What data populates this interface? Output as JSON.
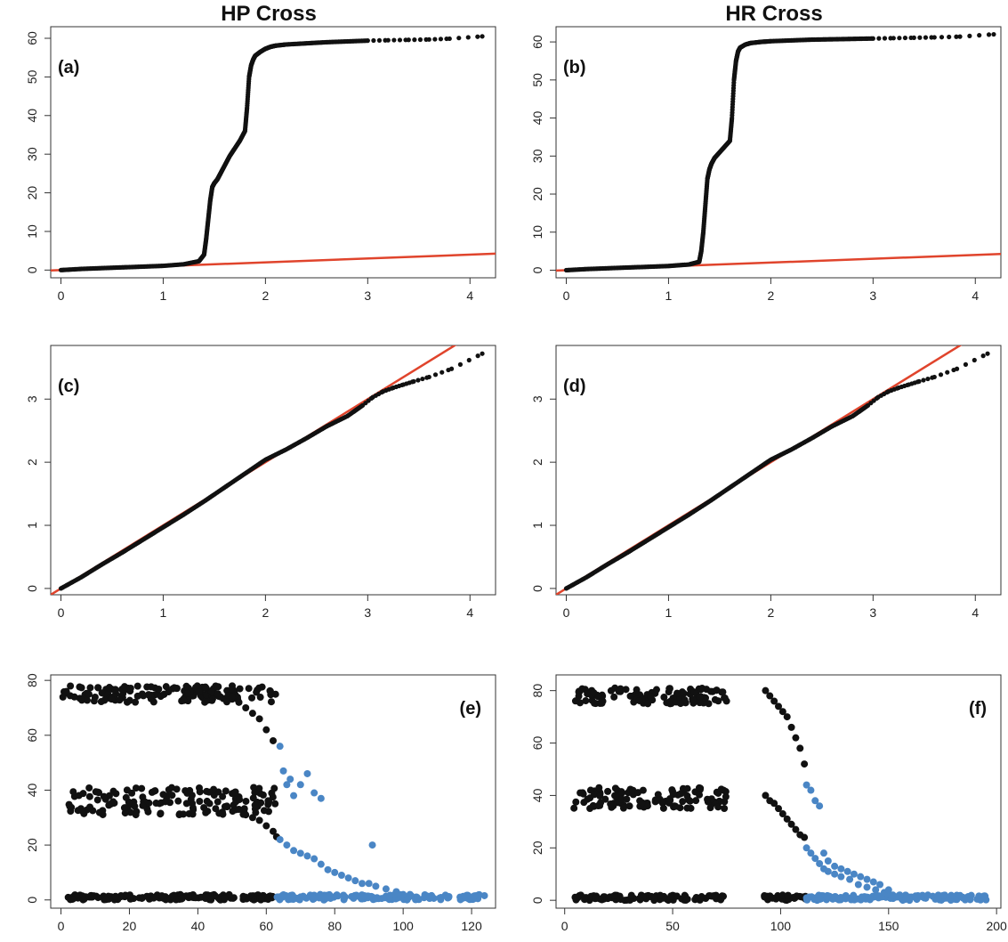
{
  "titles": {
    "left": "HP Cross",
    "right": "HR Cross"
  },
  "colors": {
    "points": "#111111",
    "highlight": "#4a86c5",
    "reference_line": "#e0442c"
  },
  "chart_data": [
    {
      "id": "a",
      "type": "scatter",
      "panel_label": "(a)",
      "title": "HP Cross",
      "xlim": [
        -0.1,
        4.25
      ],
      "ylim": [
        -2,
        63
      ],
      "xticks": [
        0,
        1,
        2,
        3,
        4
      ],
      "yticks": [
        0,
        10,
        20,
        30,
        40,
        50,
        60
      ],
      "reference_line": {
        "slope": 1,
        "intercept": 0
      },
      "series": [
        {
          "x": [
            0,
            0.2,
            0.4,
            0.6,
            0.8,
            1.0,
            1.2,
            1.35,
            1.4,
            1.42,
            1.44,
            1.46,
            1.48,
            1.5,
            1.53,
            1.56,
            1.6,
            1.65,
            1.7,
            1.75,
            1.8,
            1.82,
            1.84,
            1.86,
            1.88,
            1.9,
            1.95,
            2.0,
            2.05,
            2.1,
            2.2,
            2.4,
            2.6,
            2.8,
            3.0,
            3.2,
            3.4,
            3.6,
            3.8,
            4.12
          ],
          "y": [
            0,
            0.3,
            0.5,
            0.7,
            0.9,
            1.1,
            1.5,
            2.3,
            4,
            8,
            13,
            18,
            21.5,
            22.5,
            23.5,
            25,
            27,
            29.5,
            31.5,
            33.5,
            36,
            42,
            50,
            53,
            54.5,
            55.5,
            56.5,
            57.3,
            57.8,
            58.1,
            58.4,
            58.7,
            59,
            59.2,
            59.4,
            59.5,
            59.6,
            59.7,
            59.9,
            60.5
          ]
        }
      ]
    },
    {
      "id": "b",
      "type": "scatter",
      "panel_label": "(b)",
      "title": "HR Cross",
      "xlim": [
        -0.1,
        4.25
      ],
      "ylim": [
        -2,
        64
      ],
      "xticks": [
        0,
        1,
        2,
        3,
        4
      ],
      "yticks": [
        0,
        10,
        20,
        30,
        40,
        50,
        60
      ],
      "reference_line": {
        "slope": 1,
        "intercept": 0
      },
      "series": [
        {
          "x": [
            0,
            0.2,
            0.4,
            0.6,
            0.8,
            1.0,
            1.2,
            1.3,
            1.32,
            1.34,
            1.36,
            1.38,
            1.4,
            1.42,
            1.45,
            1.5,
            1.55,
            1.6,
            1.62,
            1.64,
            1.66,
            1.68,
            1.7,
            1.75,
            1.8,
            1.9,
            2.0,
            2.2,
            2.4,
            2.6,
            2.8,
            3.0,
            3.2,
            3.4,
            3.6,
            3.85,
            4.18
          ],
          "y": [
            0,
            0.3,
            0.5,
            0.7,
            0.9,
            1.1,
            1.5,
            2.2,
            5,
            10,
            17,
            24,
            26.5,
            28,
            29.5,
            31,
            32.5,
            34,
            40,
            50,
            55,
            57.5,
            58.5,
            59.3,
            59.7,
            60.0,
            60.2,
            60.4,
            60.6,
            60.7,
            60.8,
            60.9,
            61.0,
            61.1,
            61.2,
            61.4,
            62.0
          ]
        }
      ]
    },
    {
      "id": "c",
      "type": "scatter",
      "panel_label": "(c)",
      "xlim": [
        -0.1,
        4.25
      ],
      "ylim": [
        -0.1,
        3.85
      ],
      "xticks": [
        0,
        1,
        2,
        3,
        4
      ],
      "yticks": [
        0,
        1,
        2,
        3
      ],
      "reference_line": {
        "slope": 1,
        "intercept": 0
      },
      "series": [
        {
          "x": [
            0,
            0.2,
            0.4,
            0.6,
            0.8,
            1.0,
            1.2,
            1.4,
            1.6,
            1.8,
            2.0,
            2.2,
            2.4,
            2.6,
            2.8,
            2.95,
            3.05,
            3.15,
            3.25,
            3.35,
            3.45,
            3.6,
            3.82,
            4.12
          ],
          "y": [
            0,
            0.18,
            0.38,
            0.57,
            0.77,
            0.97,
            1.17,
            1.38,
            1.6,
            1.82,
            2.04,
            2.2,
            2.38,
            2.57,
            2.73,
            2.9,
            3.03,
            3.12,
            3.18,
            3.23,
            3.28,
            3.35,
            3.48,
            3.72
          ]
        }
      ]
    },
    {
      "id": "d",
      "type": "scatter",
      "panel_label": "(d)",
      "xlim": [
        -0.1,
        4.25
      ],
      "ylim": [
        -0.1,
        3.85
      ],
      "xticks": [
        0,
        1,
        2,
        3,
        4
      ],
      "yticks": [
        0,
        1,
        2,
        3
      ],
      "reference_line": {
        "slope": 1,
        "intercept": 0
      },
      "series": [
        {
          "x": [
            0,
            0.2,
            0.4,
            0.6,
            0.8,
            1.0,
            1.2,
            1.4,
            1.6,
            1.8,
            2.0,
            2.2,
            2.4,
            2.6,
            2.8,
            2.95,
            3.05,
            3.15,
            3.25,
            3.35,
            3.45,
            3.6,
            3.82,
            4.12
          ],
          "y": [
            0,
            0.18,
            0.38,
            0.57,
            0.77,
            0.97,
            1.17,
            1.38,
            1.6,
            1.82,
            2.04,
            2.2,
            2.38,
            2.57,
            2.73,
            2.9,
            3.03,
            3.12,
            3.18,
            3.23,
            3.28,
            3.35,
            3.48,
            3.72
          ]
        }
      ]
    },
    {
      "id": "e",
      "type": "scatter",
      "panel_label": "(e)",
      "xlim": [
        -3,
        127
      ],
      "ylim": [
        -3,
        82
      ],
      "xticks": [
        0,
        20,
        40,
        60,
        80,
        100,
        120
      ],
      "yticks": [
        0,
        20,
        40,
        60,
        80
      ],
      "clusters": [
        {
          "color": "black",
          "x_range": [
            0,
            63
          ],
          "y_center": 75,
          "y_spread": 3,
          "note_drop": "declines to about 52 near x=60"
        },
        {
          "color": "black",
          "x_range": [
            2,
            63
          ],
          "y_center": 36,
          "y_spread": 5
        },
        {
          "color": "black",
          "x_range": [
            2,
            63
          ],
          "y_center": 1,
          "y_spread": 1
        },
        {
          "color": "blue",
          "x_range": [
            63,
            124
          ],
          "y_center": 1,
          "y_spread": 1
        }
      ],
      "series": [
        {
          "name": "black-transition",
          "x": [
            50,
            52,
            54,
            56,
            58,
            60,
            62,
            52,
            54,
            56,
            58,
            60,
            62,
            63
          ],
          "y": [
            74,
            72,
            70,
            68,
            66,
            62,
            58,
            33,
            31,
            30,
            29,
            27,
            25,
            23
          ]
        },
        {
          "name": "blue-decay",
          "x": [
            64,
            65,
            66,
            67,
            68,
            70,
            72,
            74,
            76,
            64,
            66,
            68,
            70,
            72,
            74,
            76,
            78,
            80,
            82,
            84,
            86,
            88,
            90,
            92,
            95,
            98,
            100,
            102,
            91
          ],
          "y": [
            56,
            47,
            42,
            44,
            38,
            42,
            46,
            39,
            37,
            22,
            20,
            18,
            17,
            16,
            15,
            13,
            11,
            10,
            9,
            8,
            7,
            6,
            6,
            5,
            4,
            3,
            2,
            2,
            20
          ]
        }
      ]
    },
    {
      "id": "f",
      "type": "scatter",
      "panel_label": "(f)",
      "xlim": [
        -4,
        202
      ],
      "ylim": [
        -3,
        86
      ],
      "xticks": [
        0,
        50,
        100,
        150,
        200
      ],
      "yticks": [
        0,
        20,
        40,
        60,
        80
      ],
      "clusters": [
        {
          "color": "black",
          "x_range": [
            4,
            75
          ],
          "y_center": 78,
          "y_spread": 3
        },
        {
          "color": "black",
          "x_range": [
            4,
            75
          ],
          "y_center": 39,
          "y_spread": 4
        },
        {
          "color": "black",
          "x_range": [
            4,
            75
          ],
          "y_center": 1,
          "y_spread": 1
        },
        {
          "color": "black",
          "x_range": [
            92,
            112
          ],
          "y_center": 1,
          "y_spread": 1
        },
        {
          "color": "blue",
          "x_range": [
            112,
            196
          ],
          "y_center": 1,
          "y_spread": 1
        }
      ],
      "series": [
        {
          "name": "black-transition",
          "x": [
            93,
            95,
            97,
            99,
            101,
            103,
            105,
            107,
            109,
            111,
            93,
            95,
            97,
            99,
            101,
            103,
            105,
            107,
            109,
            111
          ],
          "y": [
            80,
            78,
            76,
            74,
            72,
            70,
            66,
            62,
            58,
            52,
            40,
            38,
            37,
            35,
            33,
            31,
            29,
            27,
            25,
            24
          ]
        },
        {
          "name": "blue-decay",
          "x": [
            112,
            114,
            116,
            118,
            120,
            122,
            125,
            128,
            132,
            136,
            140,
            144,
            148,
            152,
            112,
            114,
            116,
            118,
            120,
            122,
            125,
            128,
            131,
            134,
            137,
            140,
            143,
            146,
            150
          ],
          "y": [
            20,
            18,
            16,
            14,
            12,
            11,
            10,
            9,
            8,
            6,
            5,
            4,
            3,
            2,
            44,
            42,
            38,
            36,
            18,
            15,
            13,
            12,
            11,
            10,
            9,
            8,
            7,
            6,
            4
          ]
        }
      ]
    }
  ]
}
